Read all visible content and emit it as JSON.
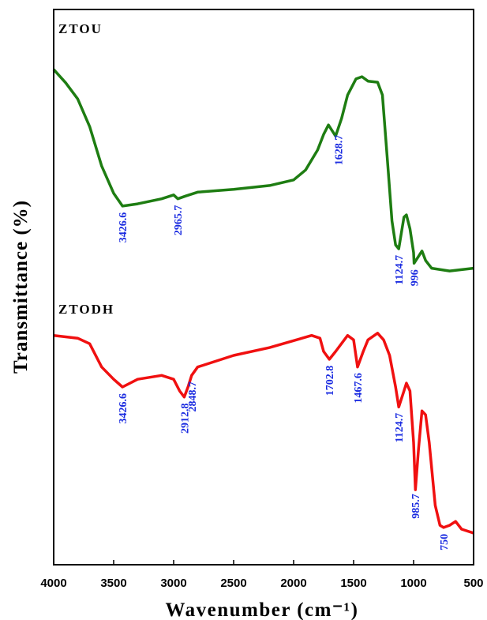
{
  "chart_data": {
    "type": "line",
    "xlabel": "Wavenumber (cm⁻¹)",
    "ylabel": "Transmittance (%)",
    "xlim": [
      4000,
      500
    ],
    "xticks": [
      4000,
      3500,
      3000,
      2500,
      2000,
      1500,
      1000,
      500
    ],
    "ylim": [
      0,
      100
    ],
    "series": [
      {
        "name": "ZTOU",
        "color": "#1e7d12",
        "x": [
          4000,
          3900,
          3800,
          3700,
          3600,
          3500,
          3426,
          3300,
          3100,
          3000,
          2965,
          2900,
          2800,
          2500,
          2200,
          2000,
          1900,
          1800,
          1750,
          1710,
          1650,
          1600,
          1550,
          1480,
          1430,
          1380,
          1300,
          1260,
          1220,
          1180,
          1150,
          1124,
          1080,
          1060,
          1030,
          1000,
          996,
          960,
          930,
          900,
          850,
          700,
          500
        ],
        "values": [
          89.2,
          86.8,
          83.9,
          78.9,
          71.8,
          66.9,
          64.6,
          65.0,
          65.9,
          66.6,
          65.9,
          66.4,
          67.1,
          67.6,
          68.3,
          69.3,
          71.1,
          74.7,
          77.5,
          79.2,
          77.2,
          80.4,
          84.6,
          87.5,
          87.9,
          87.1,
          86.9,
          84.6,
          73.3,
          61.9,
          57.6,
          56.9,
          62.6,
          63.0,
          60.5,
          56.2,
          54.3,
          55.5,
          56.5,
          54.8,
          53.4,
          52.9,
          53.4
        ],
        "annotations": [
          "3426.6",
          "2965.7",
          "1628.7",
          "1124.7",
          "996"
        ]
      },
      {
        "name": "ZTODH",
        "color": "#f01010",
        "x": [
          4000,
          3800,
          3700,
          3600,
          3500,
          3426,
          3300,
          3100,
          3000,
          2950,
          2912,
          2880,
          2850,
          2800,
          2500,
          2200,
          1850,
          1780,
          1750,
          1702,
          1650,
          1550,
          1500,
          1467,
          1420,
          1380,
          1300,
          1250,
          1200,
          1150,
          1124,
          1080,
          1060,
          1030,
          1000,
          985,
          960,
          930,
          900,
          870,
          820,
          780,
          750,
          700,
          650,
          600,
          500
        ],
        "values": [
          41.3,
          40.8,
          39.8,
          35.6,
          33.4,
          32.0,
          33.4,
          34.1,
          33.4,
          31.3,
          30.2,
          32.0,
          34.1,
          35.6,
          37.7,
          39.1,
          41.3,
          40.8,
          38.4,
          37.0,
          38.4,
          41.3,
          40.5,
          35.6,
          38.4,
          40.5,
          41.7,
          40.5,
          37.7,
          32.0,
          28.4,
          31.3,
          32.7,
          31.3,
          22.0,
          13.5,
          20.6,
          27.7,
          27.0,
          22.0,
          10.7,
          7.1,
          6.7,
          7.1,
          7.8,
          6.4,
          5.7
        ],
        "annotations": [
          "3426.6",
          "2912.8",
          "2848.7",
          "1702.8",
          "1467.6",
          "1124.7",
          "985.7",
          "750"
        ]
      }
    ]
  }
}
